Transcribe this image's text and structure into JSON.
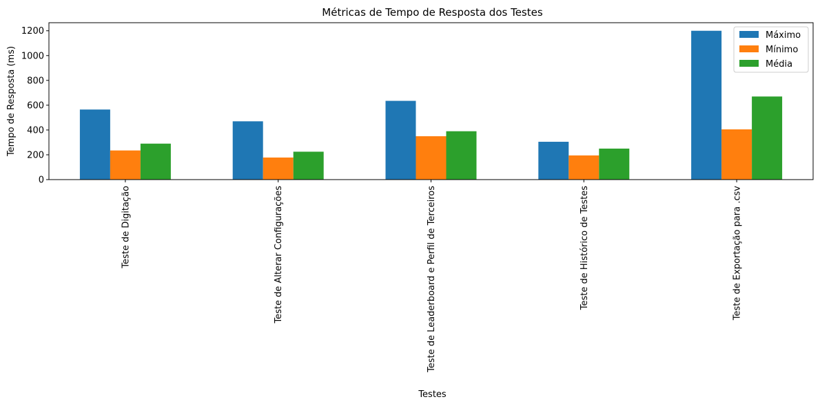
{
  "chart_data": {
    "type": "bar",
    "title": "Métricas de Tempo de Resposta dos Testes",
    "xlabel": "Testes",
    "ylabel": "Tempo de Resposta (ms)",
    "ylim": [
      0,
      1265
    ],
    "yticks": [
      0,
      200,
      400,
      600,
      800,
      1000,
      1200
    ],
    "categories": [
      "Teste de Digitação",
      "Teste de Alterar Configurações",
      "Teste de Leaderboard e Perfil de Terceiros",
      "Teste de Histórico de Testes",
      "Teste de Exportação para .csv"
    ],
    "series": [
      {
        "name": "Máximo",
        "color": "#1f77b4",
        "values": [
          565,
          470,
          635,
          305,
          1200
        ]
      },
      {
        "name": "Mínimo",
        "color": "#ff7f0e",
        "values": [
          235,
          178,
          350,
          195,
          405
        ]
      },
      {
        "name": "Média",
        "color": "#2ca02c",
        "values": [
          290,
          225,
          390,
          250,
          670
        ]
      }
    ],
    "grid": false,
    "legend_position": "top-right"
  }
}
